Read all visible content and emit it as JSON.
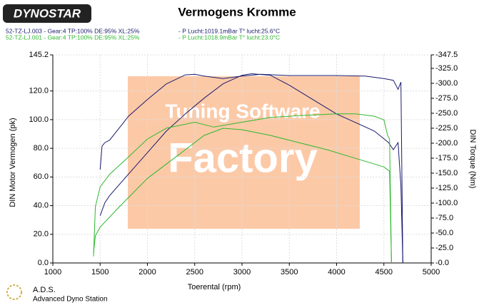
{
  "chart_data": {
    "type": "line",
    "title": "Vermogens Kromme",
    "logo": "DYNOSTAR",
    "footer": [
      "A.D.S.",
      "Advanced Dyno Station"
    ],
    "watermark": [
      "Tuning Software",
      "Factory"
    ],
    "runs": [
      {
        "label": "52-TZ-LJ.003 - Gear:4 TP:100% DE:95% XL:25%",
        "conditions": "- P Lucht:1019.1mBar T° lucht:25.6°C",
        "color": "#1a1a6e"
      },
      {
        "label": "52-TZ-LJ.001 - Gear:4 TP:100% DE:95% XL:25%",
        "conditions": "- P Lucht:1018.9mBar T° lucht:23.0°C",
        "color": "#2eb82e"
      }
    ],
    "x_label": "Toerental (rpm)",
    "y_label": "DIN Motor Vermogen (pk)",
    "y2_label": "DIN Torque (Nm)",
    "xlim": [
      1000,
      5000
    ],
    "xticks": [
      1000,
      1500,
      2000,
      2500,
      3000,
      3500,
      4000,
      4500,
      5000
    ],
    "ylim": [
      0,
      145.2
    ],
    "yticks": [
      {
        "value": 0,
        "label": "0.0"
      },
      {
        "value": 20,
        "label": "20.0"
      },
      {
        "value": 40,
        "label": "40.0"
      },
      {
        "value": 60,
        "label": "60.0"
      },
      {
        "value": 80,
        "label": "80.0"
      },
      {
        "value": 100,
        "label": "100.0"
      },
      {
        "value": 120,
        "label": "120.0"
      },
      {
        "value": 145.2,
        "label": "145.2"
      }
    ],
    "y2lim": [
      0,
      347.5
    ],
    "y2ticks": [
      {
        "value": 0,
        "label": "-0.0"
      },
      {
        "value": 25,
        "label": "-25.0"
      },
      {
        "value": 50,
        "label": "-50.0"
      },
      {
        "value": 75,
        "label": "-75.0"
      },
      {
        "value": 100,
        "label": "-100.0"
      },
      {
        "value": 125,
        "label": "-125.0"
      },
      {
        "value": 150,
        "label": "-150.0"
      },
      {
        "value": 175,
        "label": "-175.0"
      },
      {
        "value": 200,
        "label": "-200.0"
      },
      {
        "value": 225,
        "label": "-225.0"
      },
      {
        "value": 250,
        "label": "-250.0"
      },
      {
        "value": 275,
        "label": "-275.0"
      },
      {
        "value": 300,
        "label": "-300.0"
      },
      {
        "value": 325,
        "label": "-325.0"
      },
      {
        "value": 347.5,
        "label": "-347.5"
      }
    ],
    "grid": true,
    "series": [
      {
        "color": "#1a1a6e",
        "axis": "y2",
        "x": [
          1500,
          1520,
          1550,
          1600,
          1700,
          1800,
          2000,
          2200,
          2400,
          2500,
          2600,
          2800,
          3000,
          3200,
          3500,
          4000,
          4300,
          4500,
          4600,
          4650,
          4680,
          4700
        ],
        "values": [
          156,
          195,
          201,
          205,
          225,
          245,
          273,
          299,
          314,
          315,
          312,
          308,
          312,
          315,
          313,
          313,
          312,
          308,
          305,
          290,
          302,
          0
        ]
      },
      {
        "color": "#1a1a6e",
        "x": [
          1500,
          1550,
          1600,
          1800,
          2000,
          2200,
          2400,
          2600,
          2800,
          3000,
          3100,
          3300,
          3500,
          3800,
          4000,
          4200,
          4400,
          4550,
          4600,
          4650,
          4680,
          4700
        ],
        "values": [
          33,
          42,
          47,
          62,
          77,
          92,
          104,
          115,
          125,
          131,
          132,
          131,
          124,
          112,
          104,
          98,
          92,
          84,
          79,
          84,
          54,
          0
        ]
      },
      {
        "color": "#2eb82e",
        "axis": "y2",
        "x": [
          1430,
          1450,
          1500,
          1600,
          1800,
          2000,
          2200,
          2500,
          2700,
          3000,
          3300,
          3600,
          4000,
          4200,
          4400,
          4500,
          4540,
          4560,
          4580
        ],
        "values": [
          11,
          94,
          127,
          148,
          177,
          207,
          225,
          235,
          227,
          235,
          243,
          246,
          249,
          249,
          245,
          239,
          213,
          207,
          0
        ]
      },
      {
        "color": "#2eb82e",
        "x": [
          1430,
          1450,
          1500,
          1700,
          2000,
          2300,
          2600,
          2800,
          3000,
          3300,
          3600,
          3900,
          4200,
          4400,
          4500,
          4560,
          4580
        ],
        "values": [
          7,
          19,
          25,
          39,
          59,
          74,
          89,
          94,
          93,
          89,
          84,
          79,
          73,
          69,
          67,
          64,
          0
        ]
      }
    ]
  }
}
